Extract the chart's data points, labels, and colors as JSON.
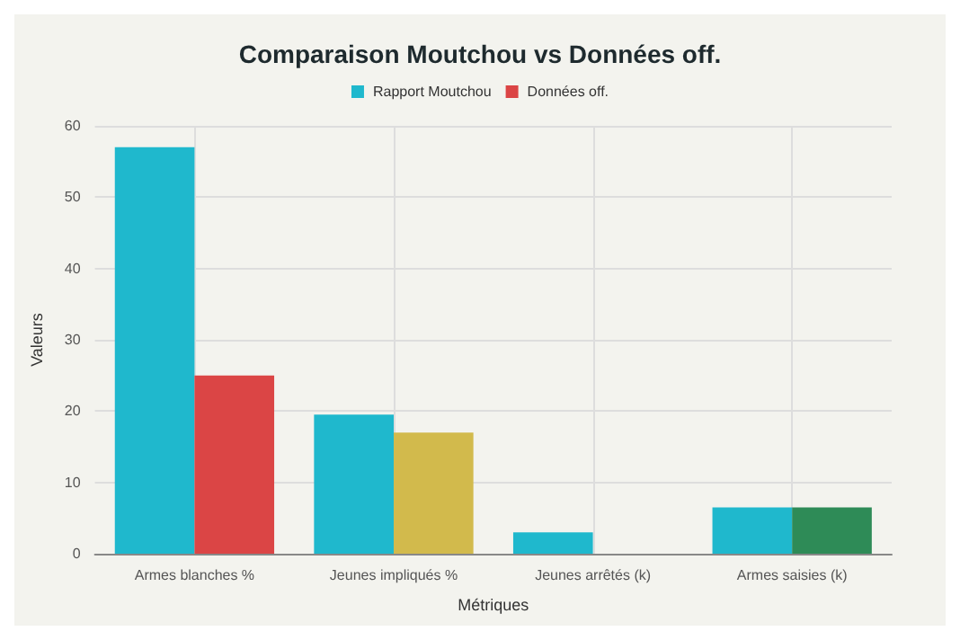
{
  "chart_data": {
    "type": "bar",
    "title": "Comparaison Moutchou vs Données off.",
    "xlabel": "Métriques",
    "ylabel": "Valeurs",
    "categories": [
      "Armes blanches %",
      "Jeunes impliqués %",
      "Jeunes arrêtés (k)",
      "Armes saisies (k)"
    ],
    "series": [
      {
        "name": "Rapport Moutchou",
        "color": "#1fb8cd",
        "values": [
          57,
          19.5,
          3,
          6.5
        ]
      },
      {
        "name": "Données off.",
        "color": "#db4545",
        "colors": [
          "#db4545",
          "#d2ba4c",
          "#d2ba4c",
          "#2e8b57"
        ],
        "values": [
          25,
          17,
          null,
          6.5
        ]
      }
    ],
    "ylim": [
      0,
      60
    ],
    "yticks": [
      0,
      10,
      20,
      30,
      40,
      50,
      60
    ],
    "grid": true,
    "legend": "top"
  }
}
